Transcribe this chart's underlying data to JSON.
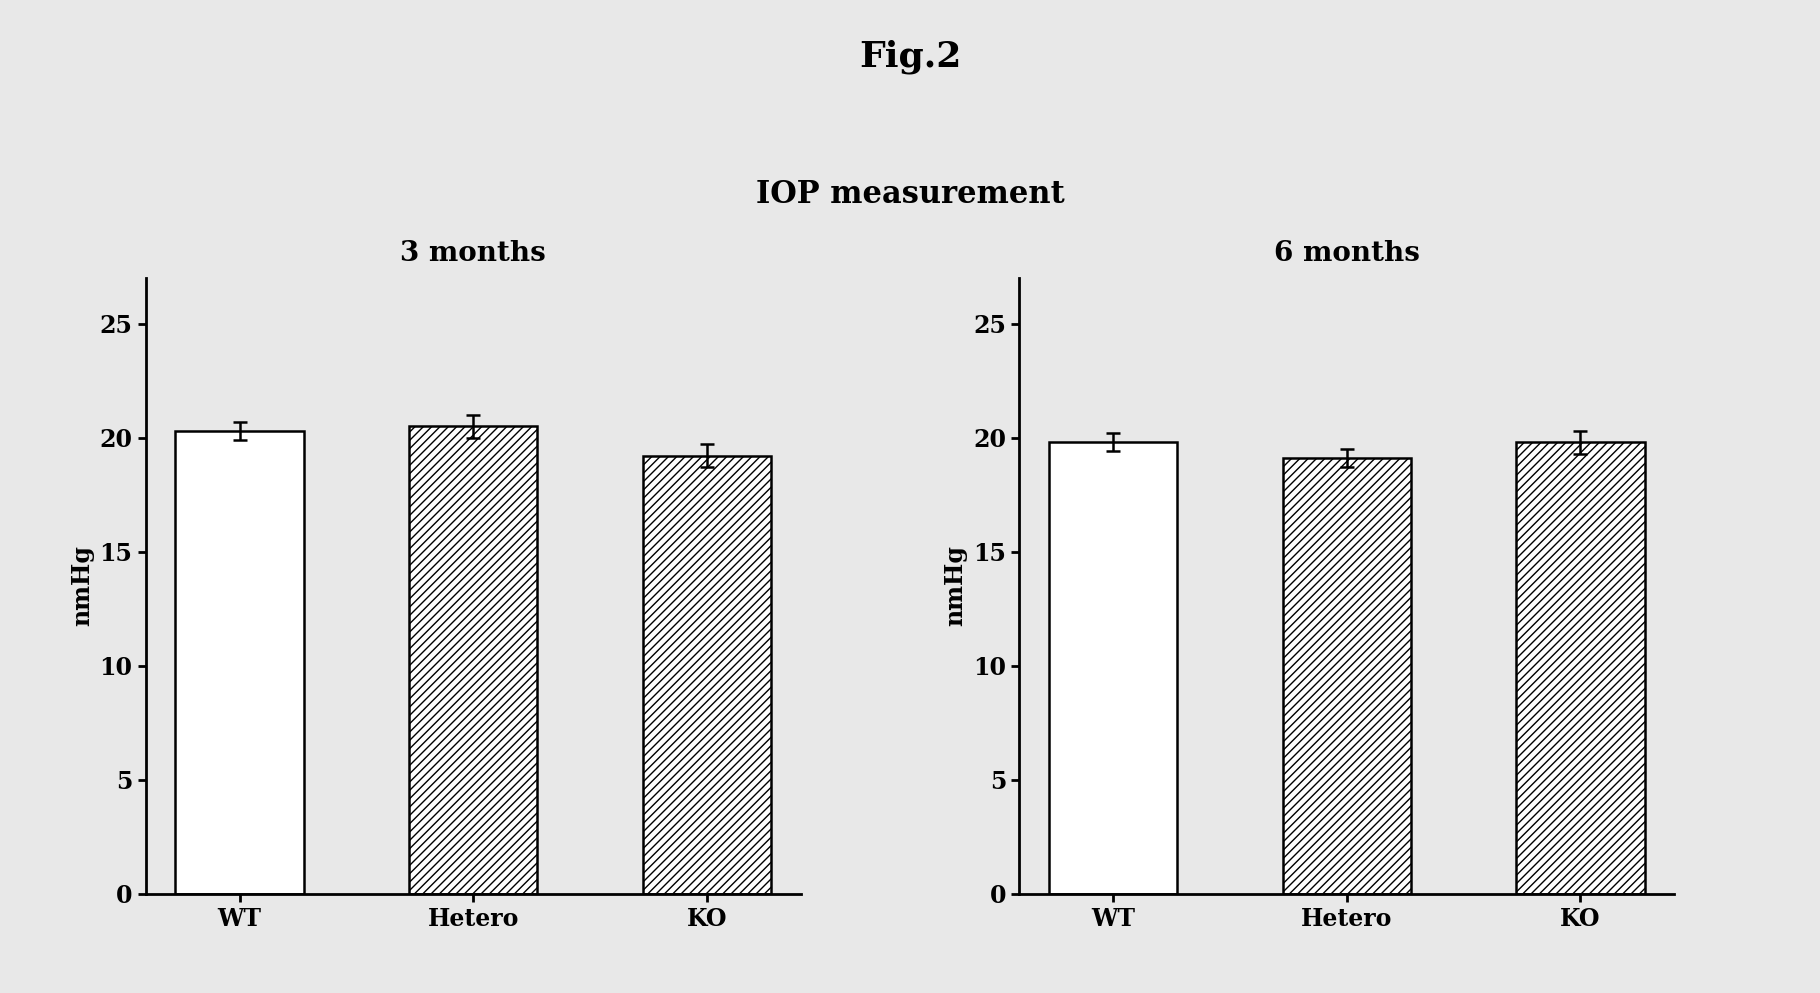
{
  "fig_title": "Fig.2",
  "main_title": "IOP measurement",
  "subplot1_title": "3 months",
  "subplot2_title": "6 months",
  "categories": [
    "WT",
    "Hetero",
    "KO"
  ],
  "ylabel": "nmHg",
  "ylim": [
    0,
    27
  ],
  "yticks": [
    0,
    5,
    10,
    15,
    20,
    25
  ],
  "subplot1_values": [
    20.3,
    20.5,
    19.2
  ],
  "subplot1_errors": [
    0.4,
    0.5,
    0.5
  ],
  "subplot2_values": [
    19.8,
    19.1,
    19.8
  ],
  "subplot2_errors": [
    0.4,
    0.4,
    0.5
  ],
  "bar_patterns": [
    "",
    "////",
    "////"
  ],
  "bar_facecolors": [
    "white",
    "white",
    "white"
  ],
  "bar_edgecolor": "black",
  "background_color": "#e8e8e8",
  "fig_title_fontsize": 26,
  "main_title_fontsize": 22,
  "subplot_title_fontsize": 20,
  "tick_label_fontsize": 17,
  "ylabel_fontsize": 17,
  "bar_width": 0.55
}
